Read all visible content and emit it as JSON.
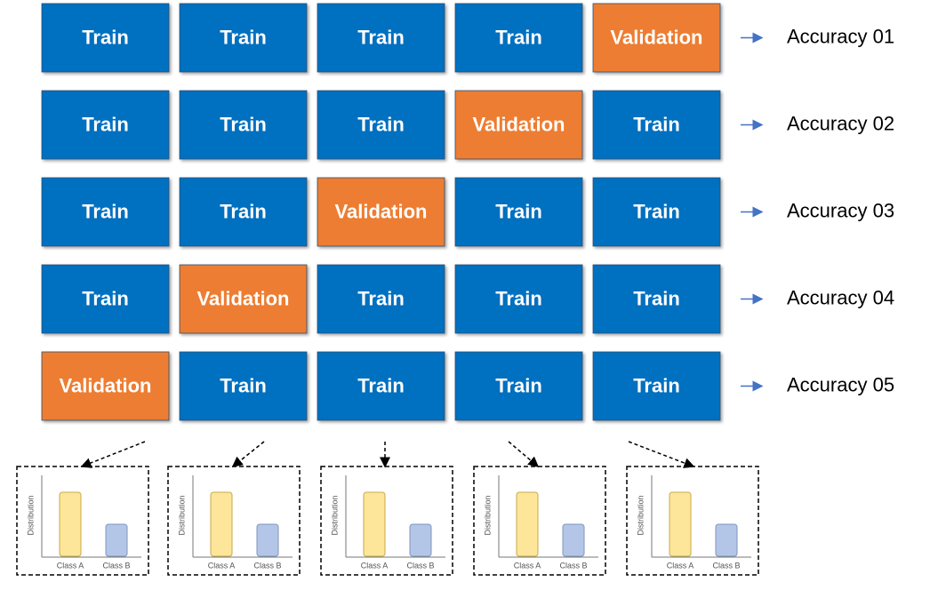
{
  "rows": [
    {
      "cells": [
        "Train",
        "Train",
        "Train",
        "Train",
        "Validation"
      ],
      "result": "Accuracy  01"
    },
    {
      "cells": [
        "Train",
        "Train",
        "Train",
        "Validation",
        "Train"
      ],
      "result": "Accuracy  02"
    },
    {
      "cells": [
        "Train",
        "Train",
        "Validation",
        "Train",
        "Train"
      ],
      "result": "Accuracy  03"
    },
    {
      "cells": [
        "Train",
        "Validation",
        "Train",
        "Train",
        "Train"
      ],
      "result": "Accuracy  04"
    },
    {
      "cells": [
        "Validation",
        "Train",
        "Train",
        "Train",
        "Train"
      ],
      "result": "Accuracy  05"
    }
  ],
  "panels": [
    {
      "y_label": "Distribution",
      "classes": [
        "Class A",
        "Class B"
      ]
    },
    {
      "y_label": "Distribution",
      "classes": [
        "Class A",
        "Class B"
      ]
    },
    {
      "y_label": "Distribution",
      "classes": [
        "Class A",
        "Class B"
      ]
    },
    {
      "y_label": "Distribution",
      "classes": [
        "Class A",
        "Class B"
      ]
    },
    {
      "y_label": "Distribution",
      "classes": [
        "Class A",
        "Class B"
      ]
    }
  ]
}
